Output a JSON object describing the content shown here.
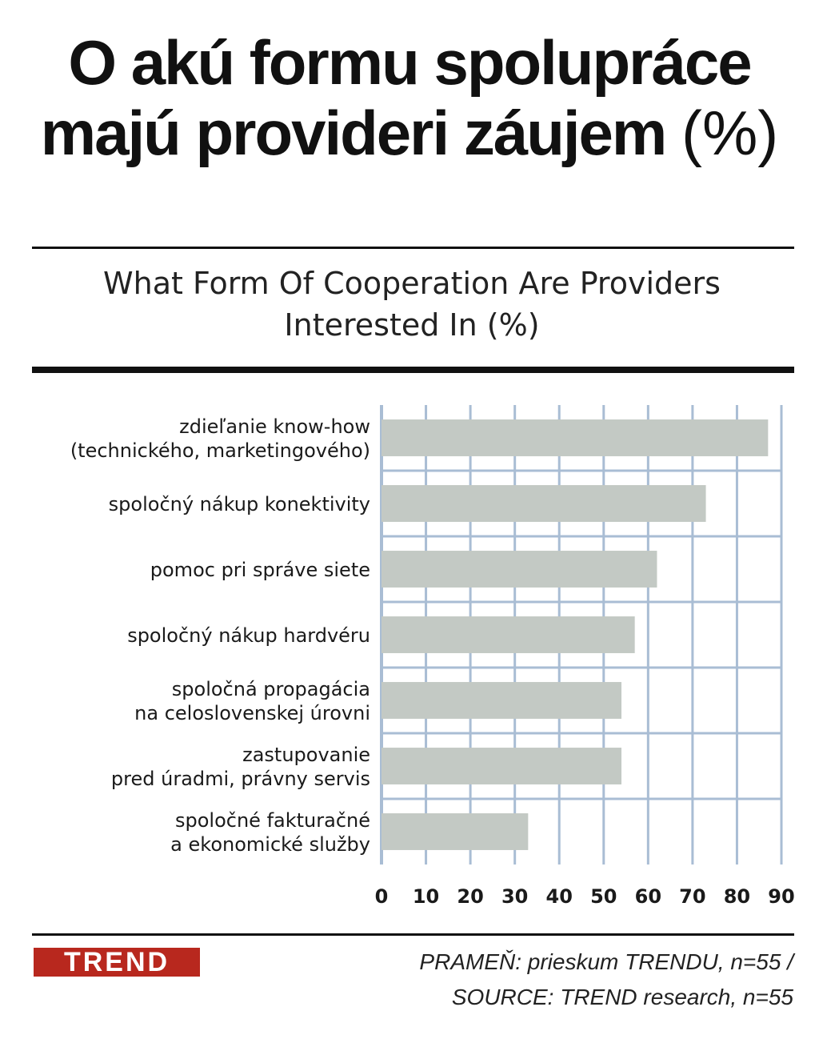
{
  "header": {
    "title": "O akú formu spolupráce majú provideri záujem",
    "title_unit": "(%)",
    "subtitle_line1": "What Form Of Cooperation Are Providers",
    "subtitle_line2": "Interested In (%)"
  },
  "chart_data": {
    "type": "bar",
    "orientation": "horizontal",
    "categories": [
      [
        "zdieľanie know-how",
        "(technického, marketingového)"
      ],
      [
        "spoločný nákup konektivity"
      ],
      [
        "pomoc pri správe siete"
      ],
      [
        "spoločný nákup hardvéru"
      ],
      [
        "spoločná propagácia",
        "na celoslovenskej úrovni"
      ],
      [
        "zastupovanie",
        "pred úradmi, právny servis"
      ],
      [
        "spoločné fakturačné",
        "a ekonomické služby"
      ]
    ],
    "values": [
      87,
      73,
      62,
      57,
      54,
      54,
      33
    ],
    "xlim": [
      0,
      90
    ],
    "xticks": [
      0,
      10,
      20,
      30,
      40,
      50,
      60,
      70,
      80,
      90
    ],
    "grid": true,
    "colors": {
      "bar": "#c3c9c4",
      "grid": "#a9bdd4"
    }
  },
  "footer": {
    "brand": "TREND",
    "brand_color": "#b8281e",
    "source_line1": "PRAMEŇ: prieskum TRENDU, n=55 /",
    "source_line2": "SOURCE: TREND research, n=55"
  }
}
